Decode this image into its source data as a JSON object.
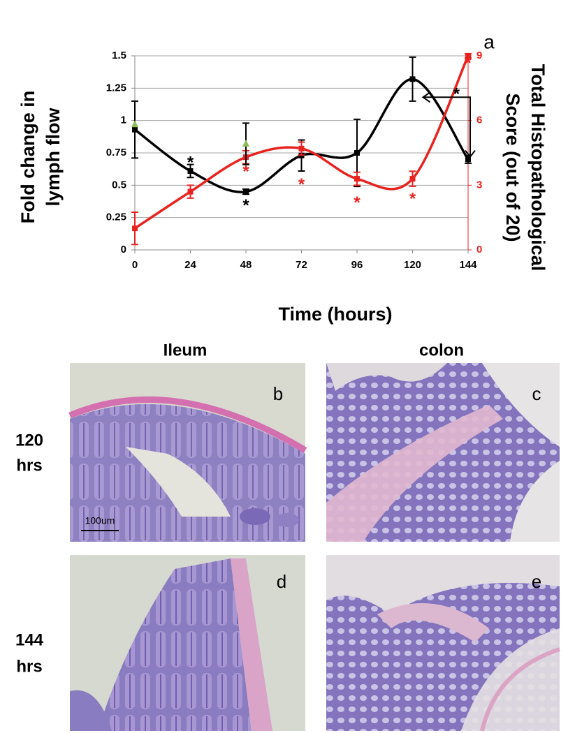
{
  "chart_data": {
    "type": "line",
    "panel_label": "a",
    "xlabel": "Time (hours)",
    "ylabel": [
      "Fold change in",
      "lymph flow"
    ],
    "y2label": [
      "Total Histopathological",
      "Score (out of 20)"
    ],
    "x": [
      0,
      24,
      48,
      72,
      96,
      120,
      144
    ],
    "xlim": [
      0,
      144
    ],
    "xticks": [
      0,
      24,
      48,
      72,
      96,
      120,
      144
    ],
    "ylim": [
      0,
      1.5
    ],
    "yticks": [
      0,
      0.25,
      0.5,
      0.75,
      1,
      1.25,
      1.5
    ],
    "y2lim": [
      0,
      9
    ],
    "y2ticks": [
      0,
      3,
      6,
      9
    ],
    "y2color": "#e8231f",
    "grid": true,
    "series": [
      {
        "color": "#000000",
        "marker": "square",
        "smooth": true,
        "values": [
          0.93,
          0.61,
          0.45,
          0.73,
          0.75,
          1.32,
          0.7
        ],
        "errors": [
          0.22,
          0.05,
          0.02,
          0.12,
          0.26,
          0.17,
          0.03
        ]
      },
      {
        "color": "#e8231f",
        "marker": "square",
        "smooth": true,
        "axis": "y2",
        "values": [
          1.0,
          2.7,
          4.3,
          4.7,
          3.3,
          3.3,
          9
        ],
        "errors": [
          0.75,
          0.3,
          0.3,
          0.3,
          0.3,
          0.35,
          0.1
        ]
      },
      {
        "color": "#8fbc5a",
        "marker": "triangle",
        "smooth": false,
        "values": [
          0.97,
          null,
          0.82,
          null,
          null,
          null,
          null
        ],
        "errors": [
          null,
          null,
          0.16,
          null,
          null,
          null,
          null
        ]
      }
    ],
    "annotations": [
      {
        "text": "*",
        "x": 24,
        "y": 0.7,
        "color": "#000000"
      },
      {
        "text": "*",
        "x": 48,
        "y": 0.37,
        "color": "#000000"
      },
      {
        "text": "*",
        "x": 139,
        "y": 1.23,
        "color": "#000000"
      },
      {
        "text": "*",
        "x": 48,
        "y": 0.63,
        "color": "#e8231f"
      },
      {
        "text": "*",
        "x": 72,
        "y": 0.53,
        "color": "#e8231f"
      },
      {
        "text": "*",
        "x": 96,
        "y": 0.39,
        "color": "#e8231f"
      },
      {
        "text": "*",
        "x": 120,
        "y": 0.42,
        "color": "#e8231f"
      },
      {
        "text": "*",
        "x": 144,
        "y": 1.47,
        "color": "#e8231f"
      }
    ]
  },
  "panels": {
    "columns": [
      "Ileum",
      "colon"
    ],
    "rows": [
      [
        "120",
        "hrs"
      ],
      [
        "144",
        "hrs"
      ]
    ],
    "letters": [
      "b",
      "c",
      "d",
      "e"
    ],
    "scale_bar": "100um"
  }
}
